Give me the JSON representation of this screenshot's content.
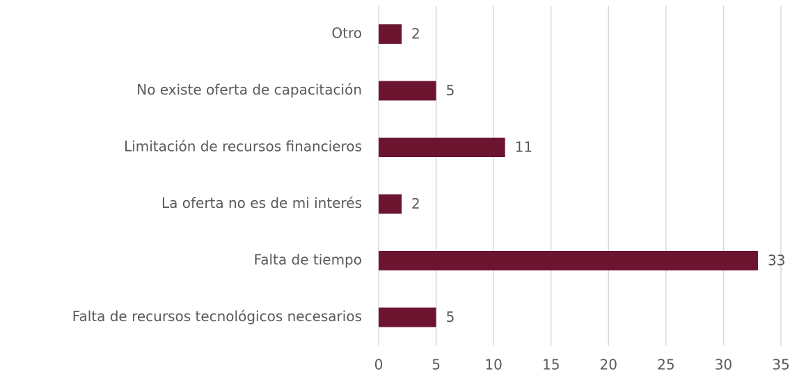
{
  "chart_data": {
    "type": "bar",
    "orientation": "horizontal",
    "categories": [
      "Otro",
      "No existe oferta de capacitación",
      "Limitación de recursos financieros",
      "La oferta no es de mi interés",
      "Falta de tiempo",
      "Falta de recursos tecnológicos necesarios"
    ],
    "values": [
      2,
      5,
      11,
      2,
      33,
      5
    ],
    "color": "#6d1530",
    "xlim": [
      0,
      35
    ],
    "xticks": [
      0,
      5,
      10,
      15,
      20,
      25,
      30,
      35
    ],
    "grid": true
  }
}
